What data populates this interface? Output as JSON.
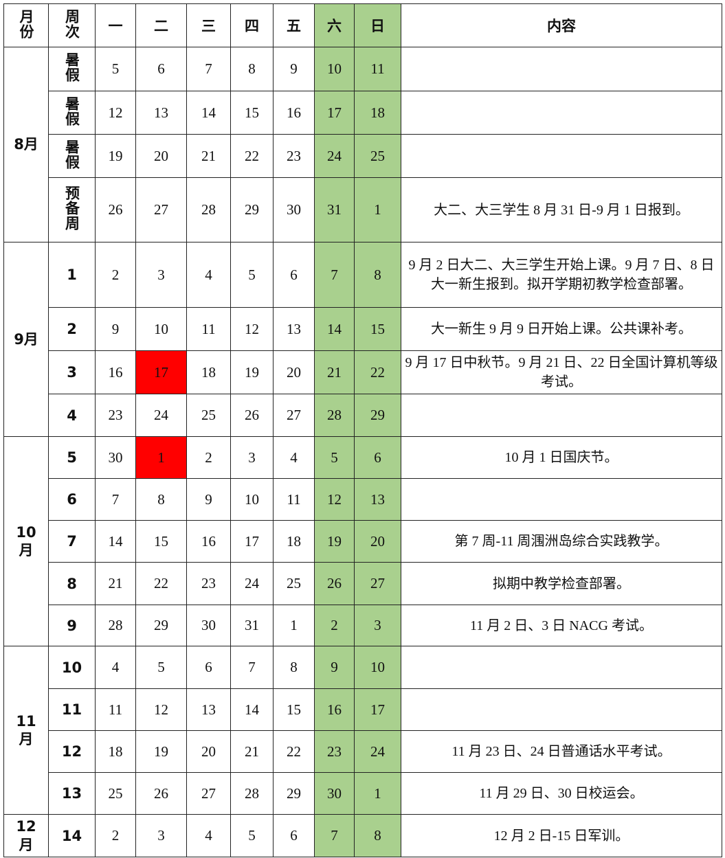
{
  "table": {
    "header": [
      "月份",
      "周次",
      "一",
      "二",
      "三",
      "四",
      "五",
      "六",
      "日",
      "内容"
    ],
    "weekend_color": "#a9d08e",
    "holiday_color": "#ff0000",
    "months": [
      {
        "month": "8月",
        "weeks": [
          {
            "week": "暑假",
            "days": [
              5,
              6,
              7,
              8,
              9,
              10,
              11
            ]
          },
          {
            "week": "暑假",
            "days": [
              12,
              13,
              14,
              15,
              16,
              17,
              18
            ]
          },
          {
            "week": "暑假",
            "days": [
              19,
              20,
              21,
              22,
              23,
              24,
              25
            ]
          },
          {
            "week": "预备周",
            "days": [
              26,
              27,
              28,
              29,
              30,
              31,
              1
            ],
            "content": "大二、大三学生 8 月 31 日-9 月 1 日报到。"
          }
        ]
      },
      {
        "month": "9月",
        "weeks": [
          {
            "week": "1",
            "days": [
              2,
              3,
              4,
              5,
              6,
              7,
              8
            ],
            "content": "9 月 2 日大二、大三学生开始上课。9 月 7 日、8 日大一新生报到。拟开学期初教学检查部署。"
          },
          {
            "week": "2",
            "days": [
              9,
              10,
              11,
              12,
              13,
              14,
              15
            ],
            "content": "大一新生 9 月 9 日开始上课。公共课补考。"
          },
          {
            "week": "3",
            "days": [
              16,
              17,
              18,
              19,
              20,
              21,
              22
            ],
            "holiday": 17,
            "content": "9 月 17 日中秋节。9 月 21 日、22 日全国计算机等级考试。"
          },
          {
            "week": "4",
            "days": [
              23,
              24,
              25,
              26,
              27,
              28,
              29
            ]
          }
        ]
      },
      {
        "month": "10月",
        "weeks": [
          {
            "week": "5",
            "days": [
              30,
              1,
              2,
              3,
              4,
              5,
              6
            ],
            "holiday": 1,
            "content": "10 月 1 日国庆节。"
          },
          {
            "week": "6",
            "days": [
              7,
              8,
              9,
              10,
              11,
              12,
              13
            ]
          },
          {
            "week": "7",
            "days": [
              14,
              15,
              16,
              17,
              18,
              19,
              20
            ],
            "content": "第 7 周-11 周涠洲岛综合实践教学。"
          },
          {
            "week": "8",
            "days": [
              21,
              22,
              23,
              24,
              25,
              26,
              27
            ],
            "content": "拟期中教学检查部署。"
          },
          {
            "week": "9",
            "days": [
              28,
              29,
              30,
              31,
              1,
              2,
              3
            ],
            "content": "11 月 2 日、3 日 NACG 考试。"
          }
        ]
      },
      {
        "month": "11月",
        "weeks": [
          {
            "week": "10",
            "days": [
              4,
              5,
              6,
              7,
              8,
              9,
              10
            ]
          },
          {
            "week": "11",
            "days": [
              11,
              12,
              13,
              14,
              15,
              16,
              17
            ]
          },
          {
            "week": "12",
            "days": [
              18,
              19,
              20,
              21,
              22,
              23,
              24
            ],
            "content": "11 月 23 日、24 日普通话水平考试。"
          },
          {
            "week": "13",
            "days": [
              25,
              26,
              27,
              28,
              29,
              30,
              1
            ],
            "content": "11 月 29 日、30 日校运会。"
          }
        ]
      },
      {
        "month": "12月",
        "weeks": [
          {
            "week": "14",
            "days": [
              2,
              3,
              4,
              5,
              6,
              7,
              8
            ],
            "content": "12 月 2 日-15 日军训。"
          }
        ]
      }
    ]
  }
}
